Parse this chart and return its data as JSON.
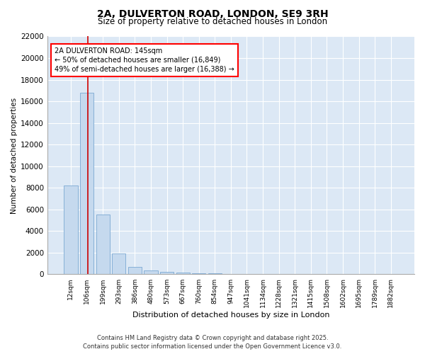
{
  "title": "2A, DULVERTON ROAD, LONDON, SE9 3RH",
  "subtitle": "Size of property relative to detached houses in London",
  "xlabel": "Distribution of detached houses by size in London",
  "ylabel": "Number of detached properties",
  "bar_color": "#c5d9ee",
  "bar_edge_color": "#7aa8d2",
  "background_color": "#dce8f5",
  "grid_color": "#ffffff",
  "categories": [
    "12sqm",
    "106sqm",
    "199sqm",
    "293sqm",
    "386sqm",
    "480sqm",
    "573sqm",
    "667sqm",
    "760sqm",
    "854sqm",
    "947sqm",
    "1041sqm",
    "1134sqm",
    "1228sqm",
    "1321sqm",
    "1415sqm",
    "1508sqm",
    "1602sqm",
    "1695sqm",
    "1789sqm",
    "1882sqm"
  ],
  "values": [
    8200,
    16800,
    5500,
    1900,
    680,
    380,
    230,
    150,
    100,
    100,
    55,
    45,
    35,
    25,
    20,
    18,
    12,
    10,
    8,
    6,
    4
  ],
  "ylim": [
    0,
    22000
  ],
  "yticks": [
    0,
    2000,
    4000,
    6000,
    8000,
    10000,
    12000,
    14000,
    16000,
    18000,
    20000,
    22000
  ],
  "red_line_x": 1.05,
  "annotation_text": "2A DULVERTON ROAD: 145sqm\n← 50% of detached houses are smaller (16,849)\n49% of semi-detached houses are larger (16,388) →",
  "footer_line1": "Contains HM Land Registry data © Crown copyright and database right 2025.",
  "footer_line2": "Contains public sector information licensed under the Open Government Licence v3.0."
}
